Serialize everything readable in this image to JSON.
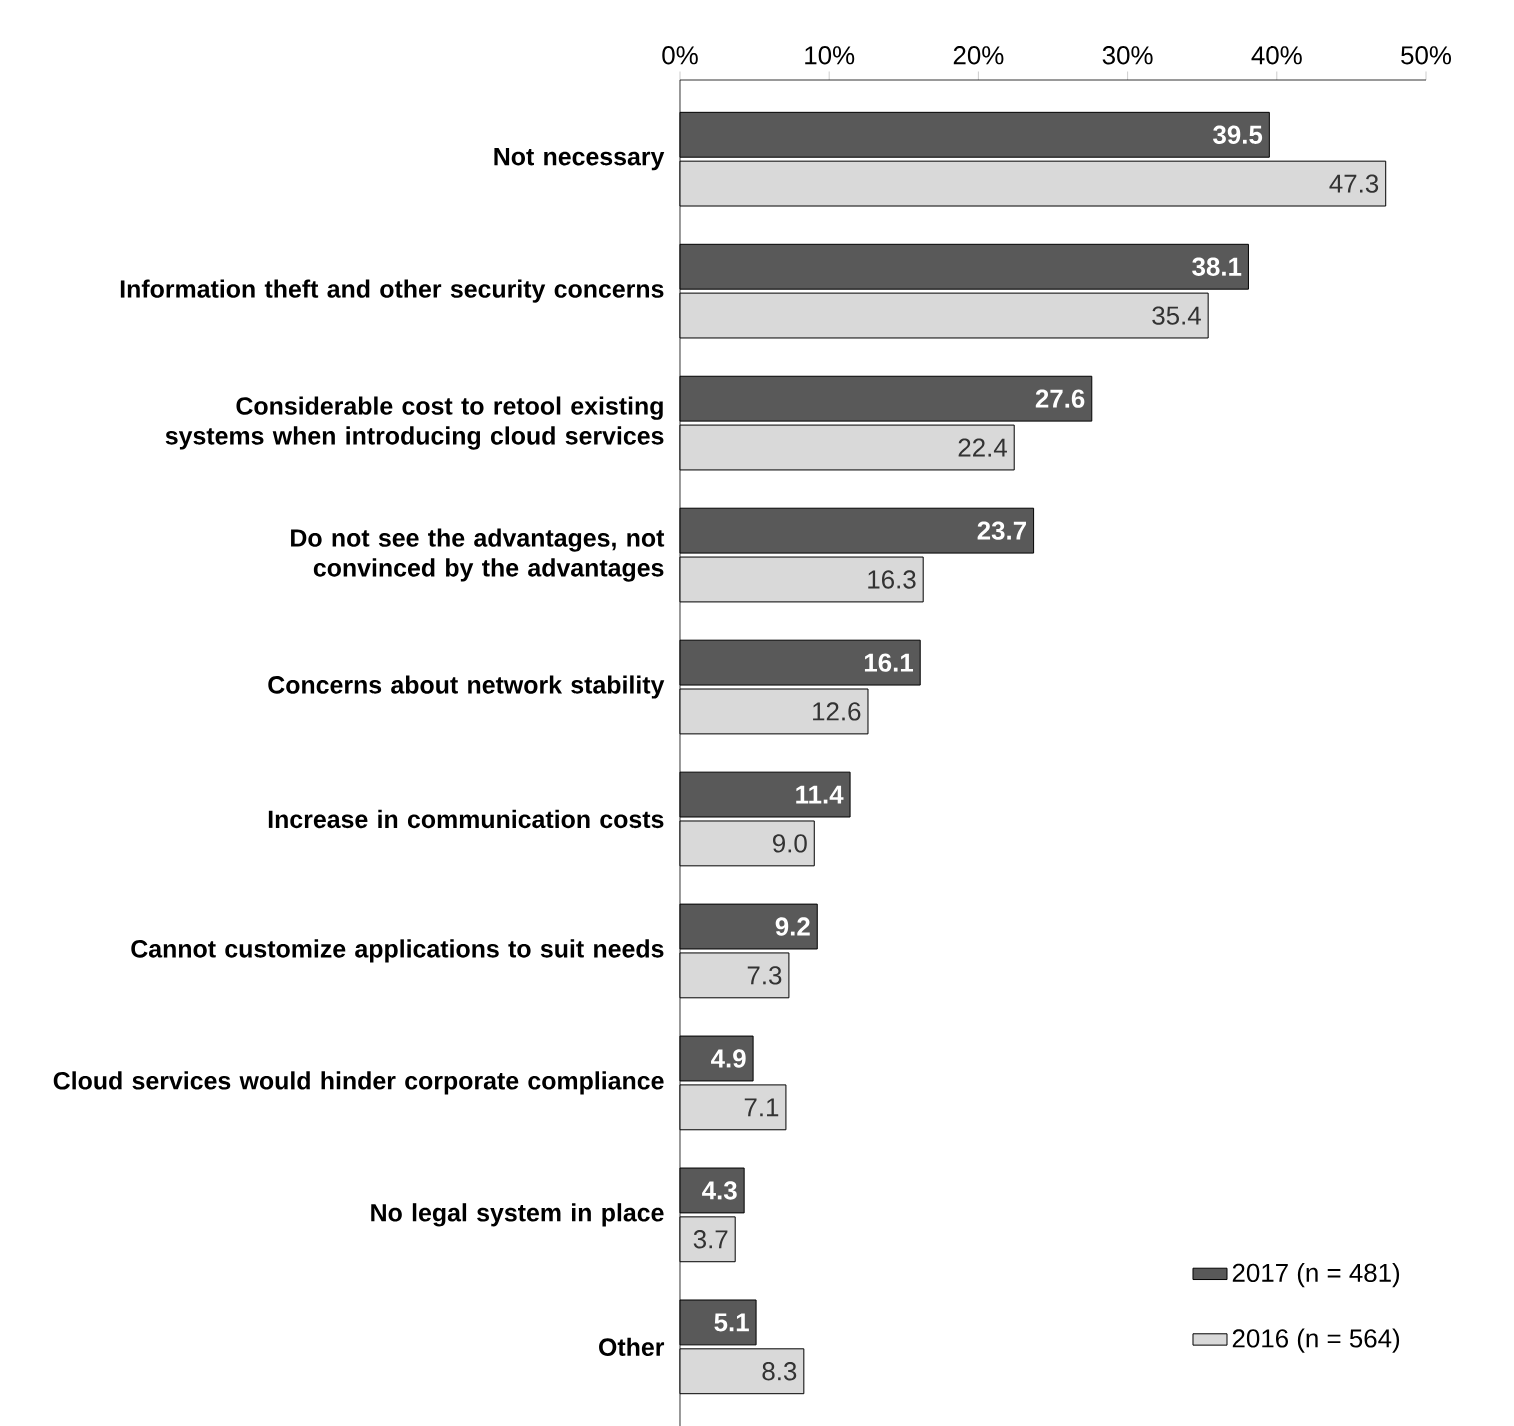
{
  "chart_data": {
    "type": "bar",
    "orientation": "horizontal",
    "categories": [
      "Not necessary",
      "Information theft and other security concerns",
      "Considerable cost to retool existing systems when introducing cloud services",
      "Do not see the advantages, not convinced by the advantages",
      "Concerns about network stability",
      "Increase in communication costs",
      "Cannot customize applications to suit needs",
      "Cloud services would hinder corporate compliance",
      "No legal system in place",
      "Other"
    ],
    "series": [
      {
        "name": "2017 (n = 481)",
        "color": "#595959",
        "values": [
          39.5,
          38.1,
          27.6,
          23.7,
          16.1,
          11.4,
          9.2,
          4.9,
          4.3,
          5.1
        ],
        "value_labels": [
          "39.5",
          "38.1",
          "27.6",
          "23.7",
          "16.1",
          "11.4",
          "9.2",
          "4.9",
          "4.3",
          "5.1"
        ]
      },
      {
        "name": "2016 (n = 564)",
        "color": "#d9d9d9",
        "values": [
          47.3,
          35.4,
          22.4,
          16.3,
          12.6,
          9.0,
          7.3,
          7.1,
          3.7,
          8.3
        ],
        "value_labels": [
          "47.3",
          "35.4",
          "22.4",
          "16.3",
          "12.6",
          "9.0",
          "7.3",
          "7.1",
          "3.7",
          "8.3"
        ]
      }
    ],
    "xlim": [
      0,
      50
    ],
    "xticks": [
      {
        "value": 0,
        "label": "0%"
      },
      {
        "value": 10,
        "label": "10%"
      },
      {
        "value": 20,
        "label": "20%"
      },
      {
        "value": 30,
        "label": "30%"
      },
      {
        "value": 40,
        "label": "40%"
      },
      {
        "value": 50,
        "label": "50%"
      }
    ],
    "grid": false,
    "legend": "bottom right"
  }
}
